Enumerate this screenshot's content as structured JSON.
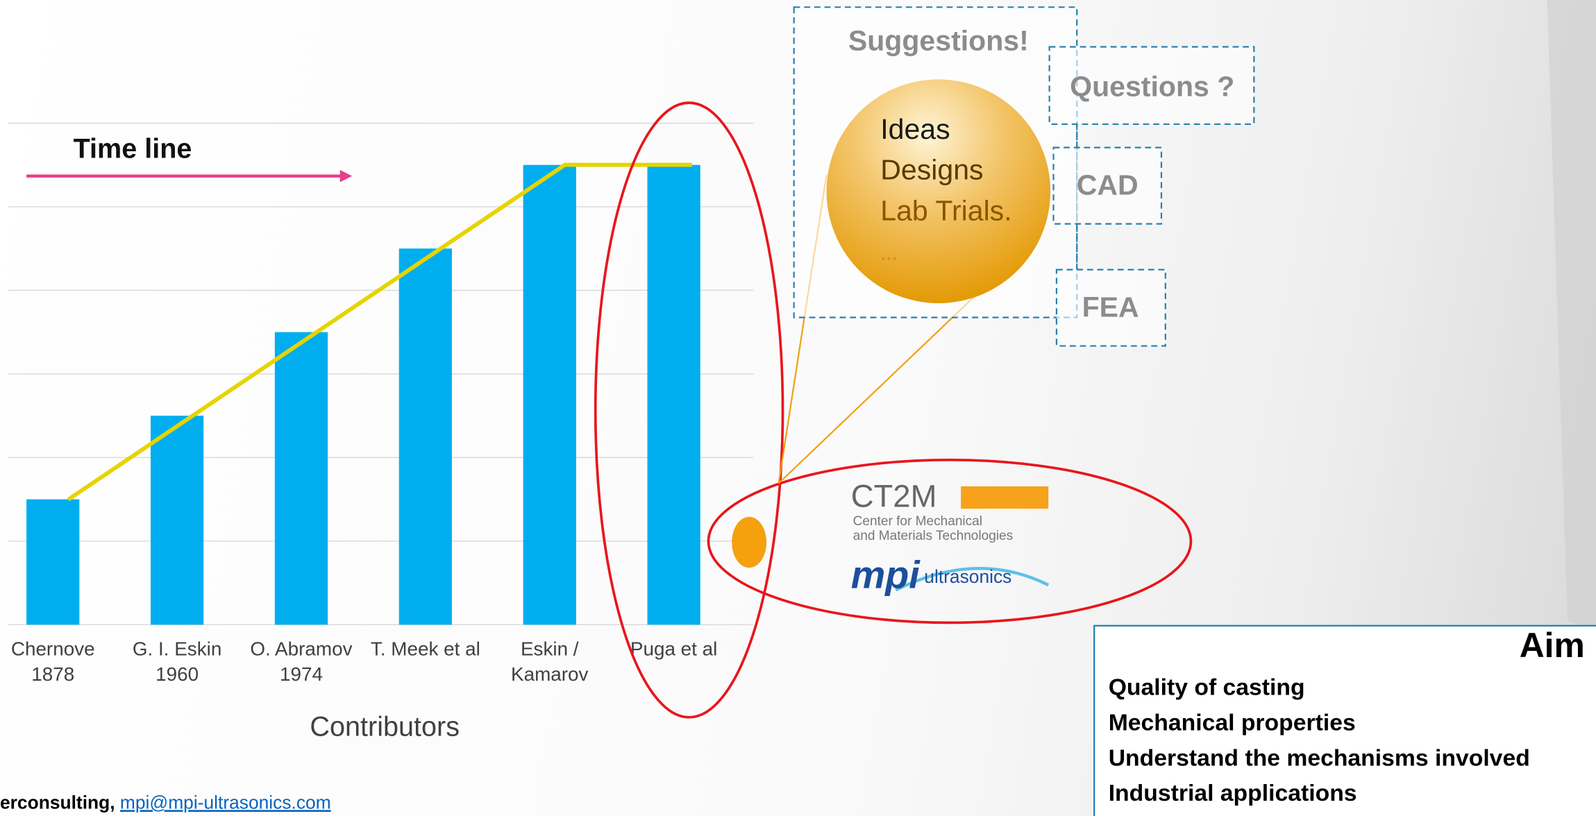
{
  "chart_data": {
    "type": "bar",
    "categories": [
      "Chernove\n1878",
      "G. I. Eskin\n1960",
      "O. Abramov\n1974",
      "T. Meek et al",
      "Eskin /\nKamarov",
      "Puga et al"
    ],
    "values": [
      1.5,
      2.5,
      3.5,
      4.5,
      5.5,
      5.5
    ],
    "color": "#00aeef",
    "xlabel": "Contributors",
    "ylim": [
      0,
      6
    ],
    "yticks": [
      0,
      1,
      2,
      3,
      4,
      5,
      6
    ],
    "grid": true
  },
  "slide": {
    "timeline": "Time line",
    "suggestions": "Suggestions!",
    "questions": "Questions ?",
    "cad": "CAD",
    "fea": "FEA",
    "bubble": [
      "Ideas",
      "Designs",
      "Lab Trials.",
      "..."
    ],
    "logo": {
      "ct2m": "CT2M",
      "line1": "Center for Mechanical",
      "line2": "and Materials Technologies",
      "mpi": "mpi",
      "ultrasonics": "ultrasonics"
    },
    "aim": {
      "title": "Aim",
      "items": [
        "Quality of casting",
        "Mechanical properties",
        "Understand the mechanisms involved",
        "Industrial applications"
      ]
    },
    "footer": {
      "text": "erconsulting, ",
      "link": "mpi@mpi-ultrasonics.com"
    }
  }
}
